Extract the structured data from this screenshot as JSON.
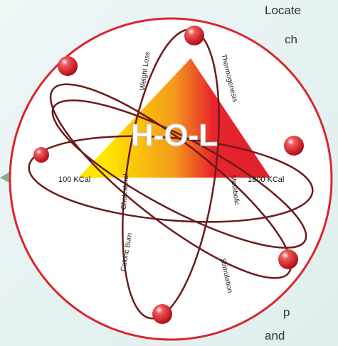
{
  "side_text": [
    "Locate",
    "ch",
    "p",
    "and"
  ],
  "diagram": {
    "title": "H-O-L",
    "scale": {
      "low": "100 KCal",
      "high": "1800 KCal"
    },
    "orbit_labels": [
      "Weight Loss",
      "Thermogenesis",
      "Cholesterol",
      "Metabolic",
      "Caloric Burn",
      "Stimulation"
    ]
  }
}
